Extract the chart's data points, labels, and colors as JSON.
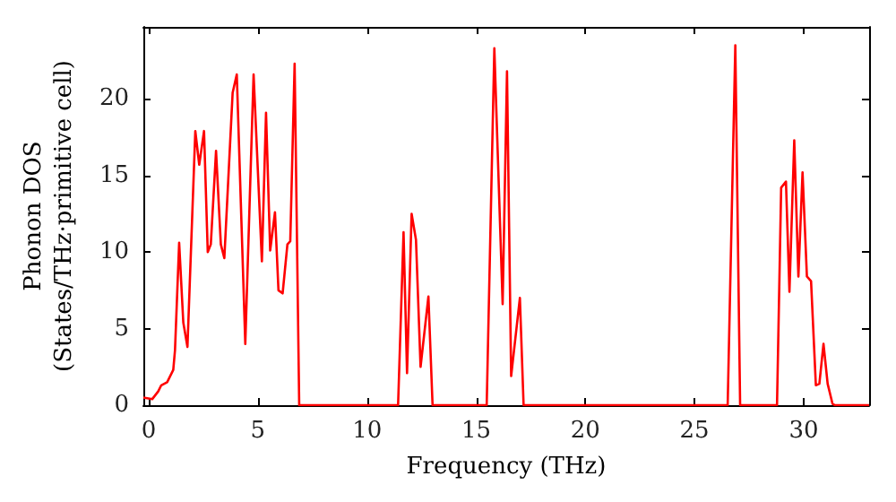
{
  "chart_data": {
    "type": "line",
    "xlabel": "Frequency (THz)",
    "ylabel": "Phonon DOS\n(States/THz·primitive cell)",
    "xlim": [
      -0.25,
      33
    ],
    "xticks": [
      0,
      5,
      10,
      15,
      20,
      25,
      30
    ],
    "ylim": [
      0,
      24.7
    ],
    "yticks": [
      0,
      5,
      10,
      15,
      20
    ],
    "grid": false,
    "marker": "none",
    "line_style": "solid",
    "series": [
      {
        "color": "#ff0000",
        "x": [
          -0.25,
          0.16,
          0.43,
          0.57,
          0.84,
          1.12,
          1.2,
          1.39,
          1.58,
          1.77,
          2.13,
          2.31,
          2.53,
          2.7,
          2.84,
          3.08,
          3.3,
          3.46,
          3.84,
          4.03,
          4.42,
          4.8,
          5.18,
          5.37,
          5.56,
          5.78,
          5.94,
          6.13,
          6.35,
          6.48,
          6.68,
          6.89,
          11.42,
          11.67,
          11.83,
          12.04,
          12.24,
          12.45,
          12.81,
          13.0,
          15.48,
          15.83,
          16.21,
          16.41,
          16.6,
          17.0,
          17.17,
          26.52,
          26.87,
          27.09,
          28.78,
          28.97,
          29.19,
          29.35,
          29.57,
          29.76,
          29.95,
          30.15,
          30.34,
          30.56,
          30.72,
          30.91,
          31.1,
          31.32,
          31.43,
          33
        ],
        "values": [
          0.5,
          0.4,
          0.9,
          1.3,
          1.5,
          2.3,
          3.6,
          10.6,
          5.4,
          3.8,
          17.9,
          15.7,
          17.9,
          10.0,
          10.5,
          16.6,
          10.5,
          9.6,
          20.4,
          21.6,
          4.0,
          21.6,
          9.4,
          19.1,
          10.1,
          12.6,
          7.5,
          7.3,
          10.5,
          10.7,
          22.3,
          0,
          0,
          11.3,
          2.1,
          12.5,
          10.8,
          2.5,
          7.1,
          0,
          0,
          23.3,
          6.6,
          21.8,
          1.9,
          7.0,
          0,
          0,
          23.5,
          0,
          0,
          14.2,
          14.6,
          7.4,
          17.3,
          8.4,
          15.2,
          8.4,
          8.1,
          1.3,
          1.4,
          4.0,
          1.4,
          0.1,
          0,
          0
        ]
      }
    ]
  }
}
